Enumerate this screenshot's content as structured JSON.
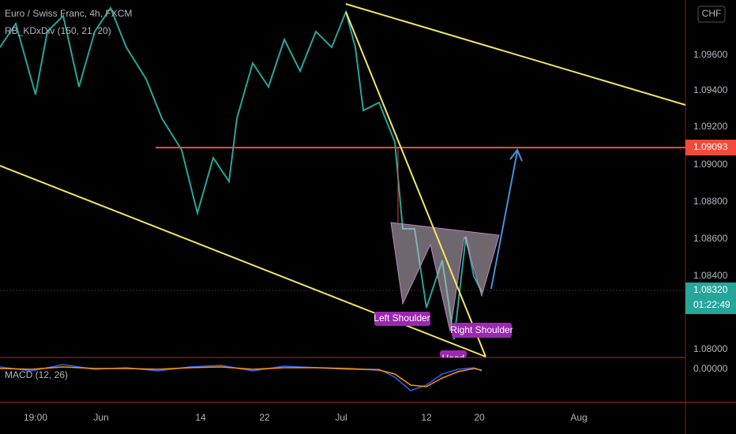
{
  "header": {
    "symbol": "Euro / Swiss Franc, 4h, FXCM",
    "indicator": "RB_KDxDiv (150, 21, 20)",
    "macd": "MACD (12, 26)"
  },
  "price_axis": {
    "currency": "CHF",
    "ticks": [
      "1.09600",
      "1.09400",
      "1.09200",
      "1.09000",
      "1.08800",
      "1.08600",
      "1.08400",
      "1.08000"
    ],
    "level_label": "1.09093",
    "last_price": "1.08320",
    "countdown": "01:22:49",
    "macd_zero": "0.00000"
  },
  "time_axis": [
    "19:00",
    "Jun",
    "14",
    "22",
    "Jul",
    "12",
    "20",
    "Aug"
  ],
  "annotations": {
    "left_shoulder": "Left Shoulder",
    "right_shoulder": "Right Shoulder",
    "head": "Head"
  }
}
